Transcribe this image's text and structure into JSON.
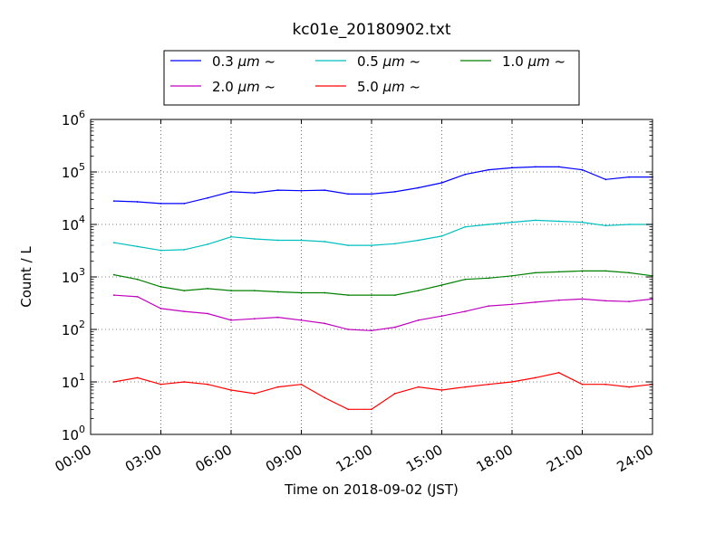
{
  "chart_data": {
    "type": "line",
    "title": "kc01e_20180902.txt",
    "xlabel": "Time on 2018-09-02 (JST)",
    "ylabel": "Count / L",
    "yscale": "log",
    "ylim": [
      1,
      1000000
    ],
    "xlim": [
      "2018-09-02 00:00",
      "2018-09-03 00:00"
    ],
    "x_ticks": [
      "00:00",
      "03:00",
      "06:00",
      "09:00",
      "12:00",
      "15:00",
      "18:00",
      "21:00",
      "24:00"
    ],
    "y_ticks": [
      {
        "base": "10",
        "exp": "0"
      },
      {
        "base": "10",
        "exp": "1"
      },
      {
        "base": "10",
        "exp": "2"
      },
      {
        "base": "10",
        "exp": "3"
      },
      {
        "base": "10",
        "exp": "4"
      },
      {
        "base": "10",
        "exp": "5"
      },
      {
        "base": "10",
        "exp": "6"
      }
    ],
    "grid": true,
    "legend_position": "top-center",
    "x": [
      "01:00",
      "02:00",
      "03:00",
      "04:00",
      "05:00",
      "06:00",
      "07:00",
      "08:00",
      "09:00",
      "10:00",
      "11:00",
      "12:00",
      "13:00",
      "14:00",
      "15:00",
      "16:00",
      "17:00",
      "18:00",
      "19:00",
      "20:00",
      "21:00",
      "22:00",
      "23:00",
      "24:00"
    ],
    "series": [
      {
        "name": "0.3 μm ~",
        "label_size": "0.3",
        "label_unit": "μm",
        "label_suffix": "~",
        "color": "#0000ff",
        "values": [
          28000,
          27000,
          25000,
          25000,
          32000,
          42000,
          40000,
          45000,
          44000,
          45000,
          38000,
          38000,
          42000,
          50000,
          62000,
          90000,
          110000,
          120000,
          125000,
          125000,
          110000,
          72000,
          80000,
          80000
        ]
      },
      {
        "name": "0.5 μm ~",
        "label_size": "0.5",
        "label_unit": "μm",
        "label_suffix": "~",
        "color": "#00bfbf",
        "values": [
          4500,
          3800,
          3200,
          3300,
          4200,
          5800,
          5300,
          5000,
          5000,
          4700,
          4000,
          4000,
          4300,
          5000,
          6000,
          9000,
          10000,
          11000,
          12000,
          11500,
          11000,
          9500,
          10000,
          10000
        ]
      },
      {
        "name": "1.0 μm ~",
        "label_size": "1.0",
        "label_unit": "μm",
        "label_suffix": "~",
        "color": "#008000",
        "values": [
          1100,
          900,
          650,
          550,
          600,
          550,
          550,
          520,
          500,
          500,
          450,
          450,
          450,
          550,
          700,
          900,
          950,
          1050,
          1200,
          1250,
          1300,
          1300,
          1200,
          1050
        ]
      },
      {
        "name": "2.0 μm ~",
        "label_size": "2.0",
        "label_unit": "μm",
        "label_suffix": "~",
        "color": "#bf00bf",
        "values": [
          450,
          420,
          250,
          220,
          200,
          150,
          160,
          170,
          150,
          130,
          100,
          95,
          110,
          150,
          180,
          220,
          280,
          300,
          330,
          360,
          380,
          350,
          340,
          380
        ]
      },
      {
        "name": "5.0 μm ~",
        "label_size": "5.0",
        "label_unit": "μm",
        "label_suffix": "~",
        "color": "#ff0000",
        "values": [
          10,
          12,
          9,
          10,
          9,
          7,
          6,
          8,
          9,
          5,
          3,
          3,
          6,
          8,
          7,
          8,
          9,
          10,
          12,
          15,
          9,
          9,
          8,
          9
        ]
      }
    ]
  }
}
